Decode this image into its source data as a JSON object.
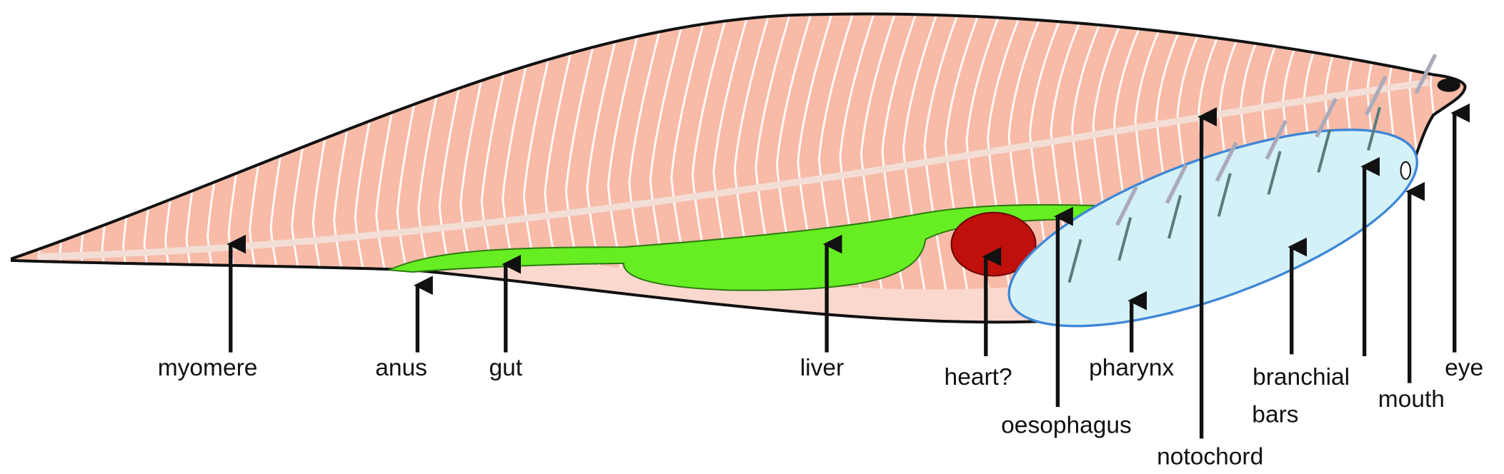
{
  "labels": [
    "myomere",
    "anus",
    "gut",
    "liver",
    "heart?",
    "pharynx",
    "oesophagus",
    "notochord",
    "branchial",
    "bars",
    "mouth",
    "eye"
  ]
}
